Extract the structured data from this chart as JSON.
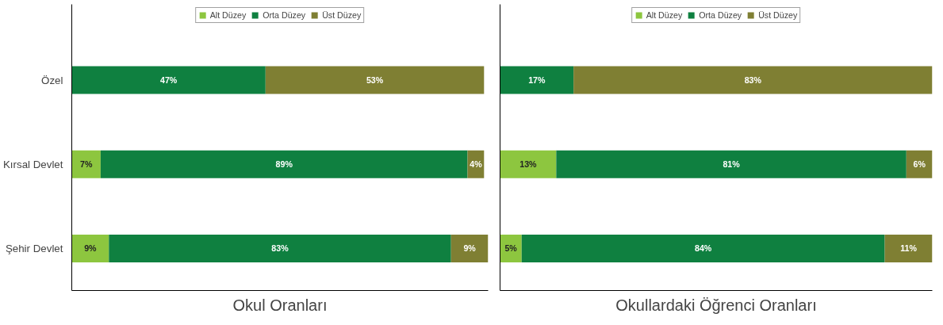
{
  "chart_data": [
    {
      "type": "bar",
      "orientation": "horizontal",
      "stacked": true,
      "title": "Okul Oranları",
      "categories": [
        "Özel",
        "Kırsal Devlet",
        "Şehir Devlet"
      ],
      "series": [
        {
          "name": "Alt Düzey",
          "color": "#8dc63f",
          "values": [
            null,
            7,
            9
          ],
          "value_labels": [
            null,
            "7%",
            "9%"
          ]
        },
        {
          "name": "Orta Düzey",
          "color": "#0f8040",
          "values": [
            47,
            89,
            83
          ],
          "value_labels": [
            "47%",
            "89%",
            "83%"
          ]
        },
        {
          "name": "Üst Düzey",
          "color": "#7f7f33",
          "values": [
            53,
            4,
            9
          ],
          "value_labels": [
            "53%",
            "4%",
            "9%"
          ]
        }
      ],
      "legend": "top",
      "grid": false,
      "tick_labels": "y"
    },
    {
      "type": "bar",
      "orientation": "horizontal",
      "stacked": true,
      "title": "Okullardaki Öğrenci Oranları",
      "categories": [
        null,
        null,
        null
      ],
      "series": [
        {
          "name": "Alt Düzey",
          "color": "#8dc63f",
          "values": [
            null,
            13,
            5
          ],
          "value_labels": [
            null,
            "13%",
            "5%"
          ]
        },
        {
          "name": "Orta Düzey",
          "color": "#0f8040",
          "values": [
            17,
            81,
            84
          ],
          "value_labels": [
            "17%",
            "81%",
            "84%"
          ]
        },
        {
          "name": "Üst Düzey",
          "color": "#7f7f33",
          "values": [
            83,
            6,
            11
          ],
          "value_labels": [
            "83%",
            "6%",
            "11%"
          ]
        }
      ],
      "legend": "top",
      "grid": false,
      "tick_labels": false
    }
  ]
}
